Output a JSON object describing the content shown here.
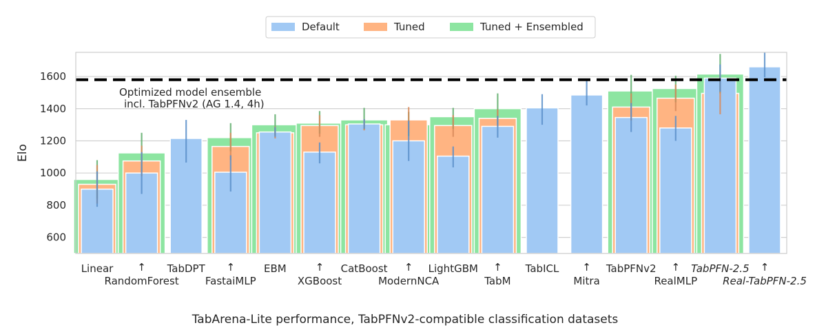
{
  "chart_data": {
    "type": "bar",
    "title": "",
    "xlabel": "TabArena-Lite performance, TabPFNv2-compatible classification datasets",
    "ylabel": "Elo",
    "ylim": [
      500,
      1750
    ],
    "yticks": [
      600,
      800,
      1000,
      1200,
      1400,
      1600
    ],
    "grid": "horizontal",
    "legend_position": "top-center",
    "categories": [
      "Linear",
      "RandomForest",
      "TabDPT",
      "FastaiMLP",
      "EBM",
      "XGBoost",
      "CatBoost",
      "ModernNCA",
      "LightGBM",
      "TabM",
      "TabICL",
      "Mitra",
      "TabPFNv2",
      "RealMLP",
      "TabPFN-2.5",
      "Real-TabPFN-2.5"
    ],
    "italic_categories": [
      "TabPFN-2.5",
      "Real-TabPFN-2.5"
    ],
    "arrow_label": "↑",
    "series": [
      {
        "name": "Default",
        "color": "#a1c9f4",
        "values": [
          900,
          1000,
          1215,
          1005,
          1255,
          1130,
          1305,
          1200,
          1105,
          1290,
          1405,
          1485,
          1345,
          1280,
          1590,
          1660
        ],
        "err_low": [
          790,
          870,
          1065,
          885,
          1225,
          1060,
          1275,
          1075,
          1035,
          1220,
          1300,
          1420,
          1255,
          1200,
          1505,
          1595
        ],
        "err_high": [
          1010,
          1130,
          1330,
          1110,
          1285,
          1190,
          1335,
          1325,
          1165,
          1355,
          1490,
          1580,
          1435,
          1355,
          1675,
          1750
        ]
      },
      {
        "name": "Tuned",
        "color": "#ffb482",
        "values": [
          930,
          1075,
          null,
          1165,
          1250,
          1295,
          1300,
          1330,
          1295,
          1340,
          null,
          null,
          1410,
          1465,
          1495,
          null
        ],
        "err_low": [
          810,
          980,
          null,
          1080,
          1215,
          1225,
          1265,
          1250,
          1225,
          1290,
          null,
          null,
          1325,
          1385,
          1365,
          null
        ],
        "err_high": [
          1050,
          1170,
          null,
          1250,
          1290,
          1360,
          1335,
          1410,
          1360,
          1395,
          null,
          null,
          1495,
          1550,
          1625,
          null
        ]
      },
      {
        "name": "Tuned + Ensembled",
        "color": "#8de5a1",
        "values": [
          960,
          1125,
          null,
          1220,
          1300,
          1310,
          1330,
          1300,
          1350,
          1400,
          null,
          null,
          1510,
          1525,
          1615,
          null
        ],
        "err_low": [
          840,
          1010,
          null,
          1135,
          1235,
          1245,
          1270,
          1230,
          1275,
          1300,
          null,
          null,
          1425,
          1440,
          1495,
          null
        ],
        "err_high": [
          1080,
          1250,
          null,
          1310,
          1365,
          1385,
          1405,
          1380,
          1405,
          1495,
          null,
          null,
          1610,
          1605,
          1740,
          null
        ]
      }
    ],
    "reference_line": {
      "value": 1580,
      "label_line1": "Optimized model ensemble",
      "label_line2": "incl. TabPFNv2 (AG 1.4, 4h)",
      "style": "dashed",
      "color": "#000000"
    }
  }
}
